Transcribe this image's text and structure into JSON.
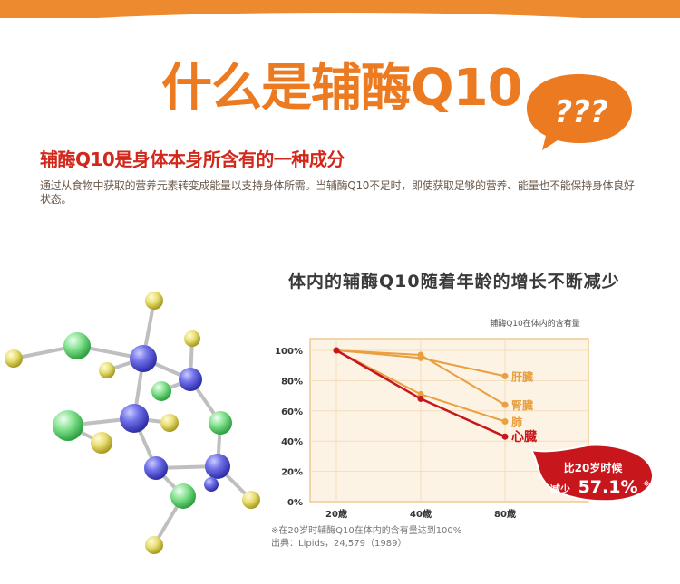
{
  "header": {
    "title": "什么是辅酶Q10",
    "bubble_text": "???"
  },
  "intro": {
    "subtitle": "辅酶Q10是身体本身所含有的一种成分",
    "description": "通过从食物中获取的营养元素转变成能量以支持身体所需。当辅酶Q10不足时，即使获取足够的营养、能量也不能保持身体良好状态。"
  },
  "chart_section": {
    "title": "体内的辅酶Q10随着年龄的增长不断减少",
    "caption": "辅酶Q10在体内的含有量",
    "callout_line1": "比20岁时候",
    "callout_prefix": "减少",
    "callout_value": "57.1%",
    "callout_mark": "※",
    "footnote": "※在20岁时辅酶Q10在体内的含有量达到100%",
    "source": "出典：Lipids，24,579（1989）"
  },
  "colors": {
    "accent_orange": "#ec7a21",
    "heart_red": "#c8161d",
    "organ_orange": "#e8a040",
    "chart_bg": "#fdf3e4"
  },
  "chart_data": {
    "type": "line",
    "title": "体内的辅酶Q10随着年龄的增长不断减少",
    "caption": "辅酶Q10在体内的含有量",
    "categories": [
      "20歳",
      "40歳",
      "80歳"
    ],
    "yticks": [
      "100%",
      "80%",
      "60%",
      "40%",
      "20%",
      "0%"
    ],
    "ylim": [
      0,
      110
    ],
    "series": [
      {
        "name": "肝臓",
        "values": [
          100,
          95,
          83
        ],
        "color": "#e8a040"
      },
      {
        "name": "腎臓",
        "values": [
          100,
          97,
          64
        ],
        "color": "#e8a040"
      },
      {
        "name": "肺",
        "values": [
          100,
          71,
          53
        ],
        "color": "#e8a040"
      },
      {
        "name": "心臓",
        "values": [
          100,
          68,
          43
        ],
        "color": "#c8161d"
      }
    ]
  }
}
